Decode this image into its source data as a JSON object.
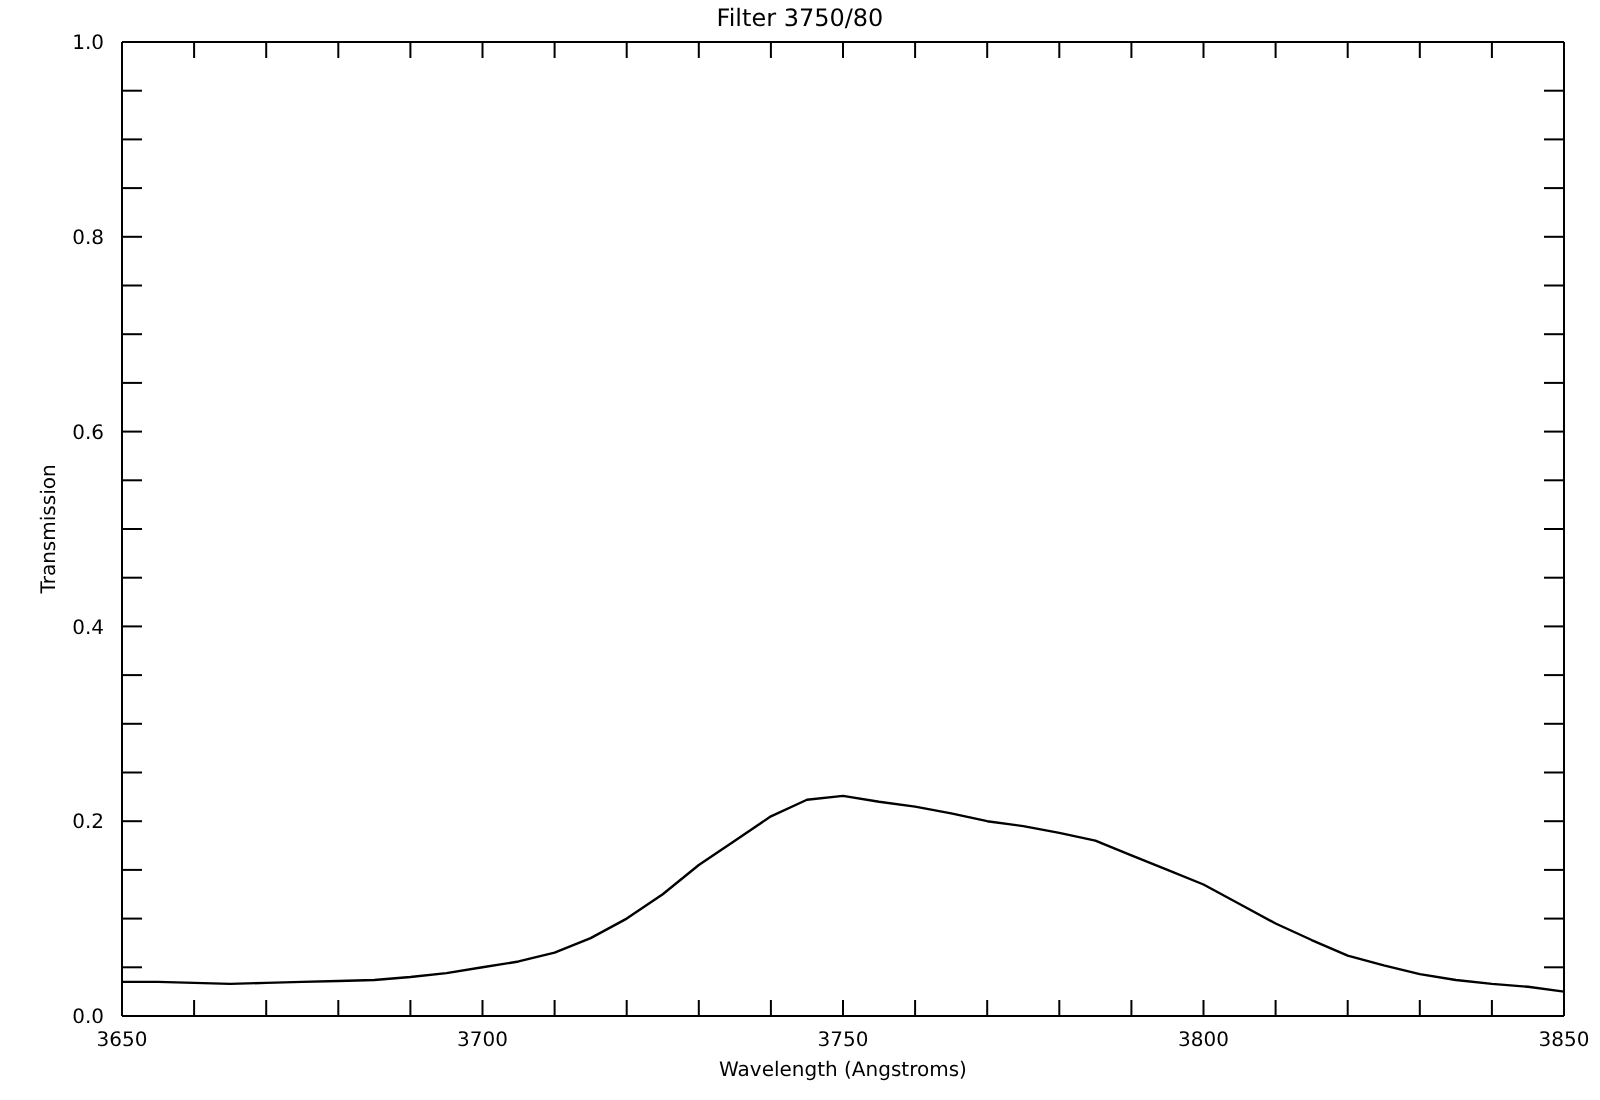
{
  "chart_data": {
    "type": "line",
    "title": "Filter 3750/80",
    "xlabel": "Wavelength (Angstroms)",
    "ylabel": "Transmission",
    "x": [
      3650,
      3655,
      3660,
      3665,
      3670,
      3675,
      3680,
      3685,
      3690,
      3695,
      3700,
      3705,
      3710,
      3715,
      3720,
      3725,
      3730,
      3735,
      3740,
      3745,
      3750,
      3755,
      3760,
      3765,
      3770,
      3775,
      3780,
      3785,
      3790,
      3795,
      3800,
      3805,
      3810,
      3815,
      3820,
      3825,
      3830,
      3835,
      3840,
      3845,
      3850
    ],
    "series": [
      {
        "color": "#000000",
        "values": [
          0.035,
          0.035,
          0.034,
          0.033,
          0.034,
          0.035,
          0.036,
          0.037,
          0.04,
          0.044,
          0.05,
          0.056,
          0.065,
          0.08,
          0.1,
          0.125,
          0.155,
          0.18,
          0.205,
          0.222,
          0.226,
          0.22,
          0.215,
          0.208,
          0.2,
          0.195,
          0.188,
          0.18,
          0.165,
          0.15,
          0.135,
          0.115,
          0.095,
          0.078,
          0.062,
          0.052,
          0.043,
          0.037,
          0.033,
          0.03,
          0.025
        ]
      }
    ],
    "xlim": [
      3650,
      3850
    ],
    "xticks": [
      3650,
      {
        "value": 3660,
        "label": null
      },
      {
        "value": 3670,
        "label": null
      },
      {
        "value": 3680,
        "label": null
      },
      {
        "value": 3690,
        "label": null
      },
      3700,
      {
        "value": 3710,
        "label": null
      },
      {
        "value": 3720,
        "label": null
      },
      {
        "value": 3730,
        "label": null
      },
      {
        "value": 3740,
        "label": null
      },
      3750,
      {
        "value": 3760,
        "label": null
      },
      {
        "value": 3770,
        "label": null
      },
      {
        "value": 3780,
        "label": null
      },
      {
        "value": 3790,
        "label": null
      },
      3800,
      {
        "value": 3810,
        "label": null
      },
      {
        "value": 3820,
        "label": null
      },
      {
        "value": 3830,
        "label": null
      },
      {
        "value": 3840,
        "label": null
      },
      3850
    ],
    "ylim": [
      0,
      1
    ],
    "yticks": [
      {
        "value": 0,
        "label": "0.0"
      },
      {
        "value": 0.05,
        "label": null
      },
      {
        "value": 0.1,
        "label": null
      },
      {
        "value": 0.15,
        "label": null
      },
      {
        "value": 0.2,
        "label": "0.2"
      },
      {
        "value": 0.25,
        "label": null
      },
      {
        "value": 0.3,
        "label": null
      },
      {
        "value": 0.35,
        "label": null
      },
      {
        "value": 0.4,
        "label": "0.4"
      },
      {
        "value": 0.45,
        "label": null
      },
      {
        "value": 0.5,
        "label": null
      },
      {
        "value": 0.55,
        "label": null
      },
      {
        "value": 0.6,
        "label": "0.6"
      },
      {
        "value": 0.65,
        "label": null
      },
      {
        "value": 0.7,
        "label": null
      },
      {
        "value": 0.75,
        "label": null
      },
      {
        "value": 0.8,
        "label": "0.8"
      },
      {
        "value": 0.85,
        "label": null
      },
      {
        "value": 0.9,
        "label": null
      },
      {
        "value": 0.95,
        "label": null
      },
      {
        "value": 1,
        "label": "1.0"
      }
    ],
    "grid": false,
    "legend": false,
    "marker": "none",
    "line_style": "solid"
  }
}
